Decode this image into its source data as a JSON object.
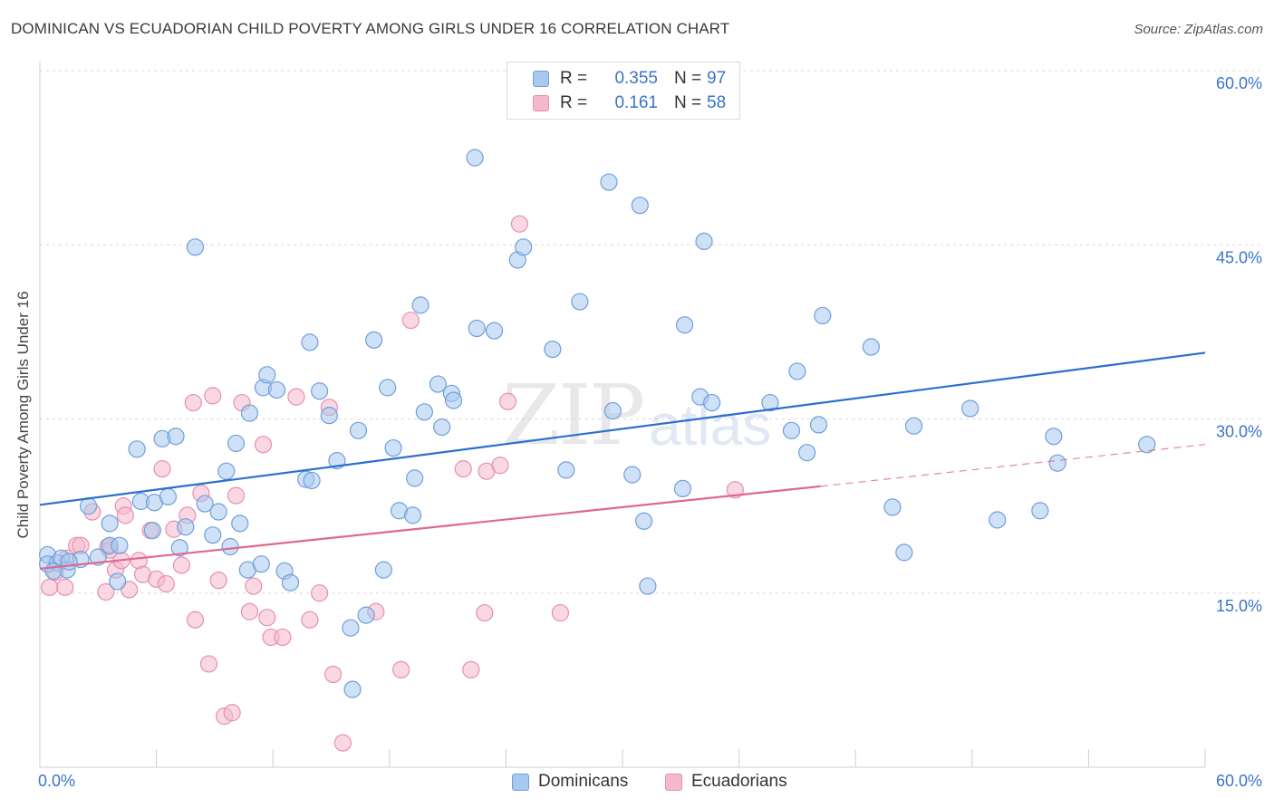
{
  "header": {
    "title": "DOMINICAN VS ECUADORIAN CHILD POVERTY AMONG GIRLS UNDER 16 CORRELATION CHART",
    "source": "Source: ZipAtlas.com"
  },
  "watermark": {
    "zip": "ZIP",
    "atlas": "atlas"
  },
  "legend": {
    "rows": [
      {
        "r_label": "R =",
        "r_value": "0.355",
        "n_label": "N =",
        "n_value": "97",
        "color": "#a8c8ee"
      },
      {
        "r_label": "R =",
        "r_value": "0.161",
        "n_label": "N =",
        "n_value": "58",
        "color": "#f6b8cc"
      }
    ]
  },
  "bottom_legend": {
    "items": [
      {
        "label": "Dominicans",
        "color": "#a8c8ee"
      },
      {
        "label": "Ecuadorians",
        "color": "#f6b8cc"
      }
    ]
  },
  "colors": {
    "blue_fill": "#a8c8ee",
    "blue_stroke": "#6f9fdc",
    "blue_line": "#2a6fd0",
    "pink_fill": "#f6b8cc",
    "pink_stroke": "#e78fae",
    "pink_line": "#e0678f",
    "axis_text": "#3a74c9",
    "grid": "#d8d8d8"
  },
  "chart_data": {
    "type": "scatter",
    "title": "DOMINICAN VS ECUADORIAN CHILD POVERTY AMONG GIRLS UNDER 16 CORRELATION CHART",
    "xlabel": "",
    "ylabel": "Child Poverty Among Girls Under 16",
    "xlim": [
      0,
      60
    ],
    "ylim": [
      0,
      60
    ],
    "x_tick_labels": [
      "0.0%",
      "60.0%"
    ],
    "y_ticks": [
      15,
      30,
      45,
      60
    ],
    "y_tick_labels": [
      "15.0%",
      "30.0%",
      "45.0%",
      "60.0%"
    ],
    "grid": true,
    "legend_position": "top-center",
    "series": [
      {
        "name": "Dominicans",
        "r": 0.355,
        "n": 97,
        "trend": {
          "x": [
            0,
            60
          ],
          "y": [
            22.6,
            35.7
          ],
          "style": "solid"
        },
        "points": [
          [
            0.4,
            18.3
          ],
          [
            0.4,
            17.5
          ],
          [
            0.9,
            17.6
          ],
          [
            1.1,
            18.0
          ],
          [
            1.4,
            17.0
          ],
          [
            2.1,
            17.9
          ],
          [
            3.0,
            18.1
          ],
          [
            3.6,
            19.1
          ],
          [
            4.0,
            16.0
          ],
          [
            4.1,
            19.1
          ],
          [
            2.5,
            22.5
          ],
          [
            3.6,
            21.0
          ],
          [
            5.2,
            22.9
          ],
          [
            5.8,
            20.4
          ],
          [
            5.9,
            22.8
          ],
          [
            6.6,
            23.3
          ],
          [
            7.2,
            18.9
          ],
          [
            7.5,
            20.7
          ],
          [
            8.5,
            22.7
          ],
          [
            8.9,
            20.0
          ],
          [
            9.2,
            22.0
          ],
          [
            9.6,
            25.5
          ],
          [
            9.8,
            19.0
          ],
          [
            10.3,
            21.0
          ],
          [
            10.7,
            17.0
          ],
          [
            11.4,
            17.5
          ],
          [
            12.6,
            16.9
          ],
          [
            12.9,
            15.9
          ],
          [
            13.7,
            24.8
          ],
          [
            14.0,
            24.7
          ],
          [
            5.0,
            27.4
          ],
          [
            6.3,
            28.3
          ],
          [
            7.0,
            28.5
          ],
          [
            8.0,
            44.8
          ],
          [
            10.1,
            27.9
          ],
          [
            10.8,
            30.5
          ],
          [
            11.5,
            32.7
          ],
          [
            11.7,
            33.8
          ],
          [
            12.2,
            32.5
          ],
          [
            13.9,
            36.6
          ],
          [
            14.4,
            32.4
          ],
          [
            14.9,
            30.3
          ],
          [
            15.3,
            26.4
          ],
          [
            16.0,
            12.0
          ],
          [
            16.1,
            6.7
          ],
          [
            16.4,
            29.0
          ],
          [
            16.8,
            13.1
          ],
          [
            17.2,
            36.8
          ],
          [
            17.7,
            17.0
          ],
          [
            17.9,
            32.7
          ],
          [
            18.2,
            27.5
          ],
          [
            18.5,
            22.1
          ],
          [
            19.2,
            21.7
          ],
          [
            19.3,
            24.9
          ],
          [
            19.6,
            39.8
          ],
          [
            19.8,
            30.6
          ],
          [
            20.5,
            33.0
          ],
          [
            20.7,
            29.3
          ],
          [
            21.2,
            32.2
          ],
          [
            21.3,
            31.6
          ],
          [
            22.4,
            52.5
          ],
          [
            22.5,
            37.8
          ],
          [
            23.4,
            37.6
          ],
          [
            24.6,
            43.7
          ],
          [
            24.9,
            44.8
          ],
          [
            26.4,
            36.0
          ],
          [
            27.1,
            25.6
          ],
          [
            27.8,
            40.1
          ],
          [
            29.3,
            50.4
          ],
          [
            29.5,
            30.7
          ],
          [
            30.5,
            25.2
          ],
          [
            30.9,
            48.4
          ],
          [
            31.1,
            21.2
          ],
          [
            31.3,
            15.6
          ],
          [
            33.1,
            24.0
          ],
          [
            33.2,
            38.1
          ],
          [
            34.0,
            31.9
          ],
          [
            34.2,
            45.3
          ],
          [
            34.6,
            31.4
          ],
          [
            37.6,
            31.4
          ],
          [
            38.7,
            29.0
          ],
          [
            39.0,
            34.1
          ],
          [
            39.5,
            27.1
          ],
          [
            40.1,
            29.5
          ],
          [
            40.3,
            38.9
          ],
          [
            42.8,
            36.2
          ],
          [
            43.9,
            22.4
          ],
          [
            44.5,
            18.5
          ],
          [
            45.0,
            29.4
          ],
          [
            47.9,
            30.9
          ],
          [
            49.3,
            21.3
          ],
          [
            51.5,
            22.1
          ],
          [
            52.2,
            28.5
          ],
          [
            52.4,
            26.2
          ],
          [
            57.0,
            27.8
          ],
          [
            0.7,
            16.9
          ],
          [
            1.5,
            17.7
          ]
        ]
      },
      {
        "name": "Ecuadorians",
        "r": 0.161,
        "n": 58,
        "trend": {
          "x": [
            0,
            40.2
          ],
          "y": [
            17.1,
            24.2
          ],
          "style": "solid",
          "extended": {
            "x": [
              40.2,
              60
            ],
            "y": [
              24.2,
              27.8
            ],
            "style": "dashed"
          }
        },
        "points": [
          [
            0.5,
            15.5
          ],
          [
            0.8,
            16.8
          ],
          [
            1.3,
            15.5
          ],
          [
            1.4,
            18.0
          ],
          [
            1.9,
            19.1
          ],
          [
            2.1,
            19.1
          ],
          [
            2.7,
            22.0
          ],
          [
            3.5,
            19.0
          ],
          [
            3.6,
            18.7
          ],
          [
            3.9,
            17.0
          ],
          [
            3.4,
            15.1
          ],
          [
            4.2,
            17.8
          ],
          [
            4.3,
            22.5
          ],
          [
            4.6,
            15.3
          ],
          [
            4.4,
            21.7
          ],
          [
            5.1,
            17.8
          ],
          [
            5.3,
            16.6
          ],
          [
            5.7,
            20.4
          ],
          [
            6.0,
            16.2
          ],
          [
            6.3,
            25.7
          ],
          [
            6.5,
            15.8
          ],
          [
            6.9,
            20.5
          ],
          [
            7.3,
            17.4
          ],
          [
            7.6,
            21.7
          ],
          [
            7.9,
            31.4
          ],
          [
            8.0,
            12.7
          ],
          [
            8.3,
            23.6
          ],
          [
            8.7,
            8.9
          ],
          [
            8.9,
            32.0
          ],
          [
            9.2,
            16.1
          ],
          [
            9.5,
            4.4
          ],
          [
            9.9,
            4.7
          ],
          [
            10.1,
            23.4
          ],
          [
            10.4,
            31.4
          ],
          [
            10.8,
            13.4
          ],
          [
            11.0,
            15.6
          ],
          [
            11.5,
            27.8
          ],
          [
            11.7,
            12.9
          ],
          [
            11.9,
            11.2
          ],
          [
            12.5,
            11.2
          ],
          [
            13.2,
            31.9
          ],
          [
            13.9,
            12.7
          ],
          [
            14.4,
            15.0
          ],
          [
            14.9,
            31.0
          ],
          [
            15.1,
            8.0
          ],
          [
            15.6,
            2.1
          ],
          [
            17.3,
            13.4
          ],
          [
            18.6,
            8.4
          ],
          [
            19.1,
            38.5
          ],
          [
            21.8,
            25.7
          ],
          [
            22.2,
            8.4
          ],
          [
            22.9,
            13.3
          ],
          [
            23.0,
            25.5
          ],
          [
            23.7,
            26.0
          ],
          [
            24.1,
            31.5
          ],
          [
            24.7,
            46.8
          ],
          [
            26.8,
            13.3
          ],
          [
            35.8,
            23.9
          ]
        ]
      }
    ]
  }
}
